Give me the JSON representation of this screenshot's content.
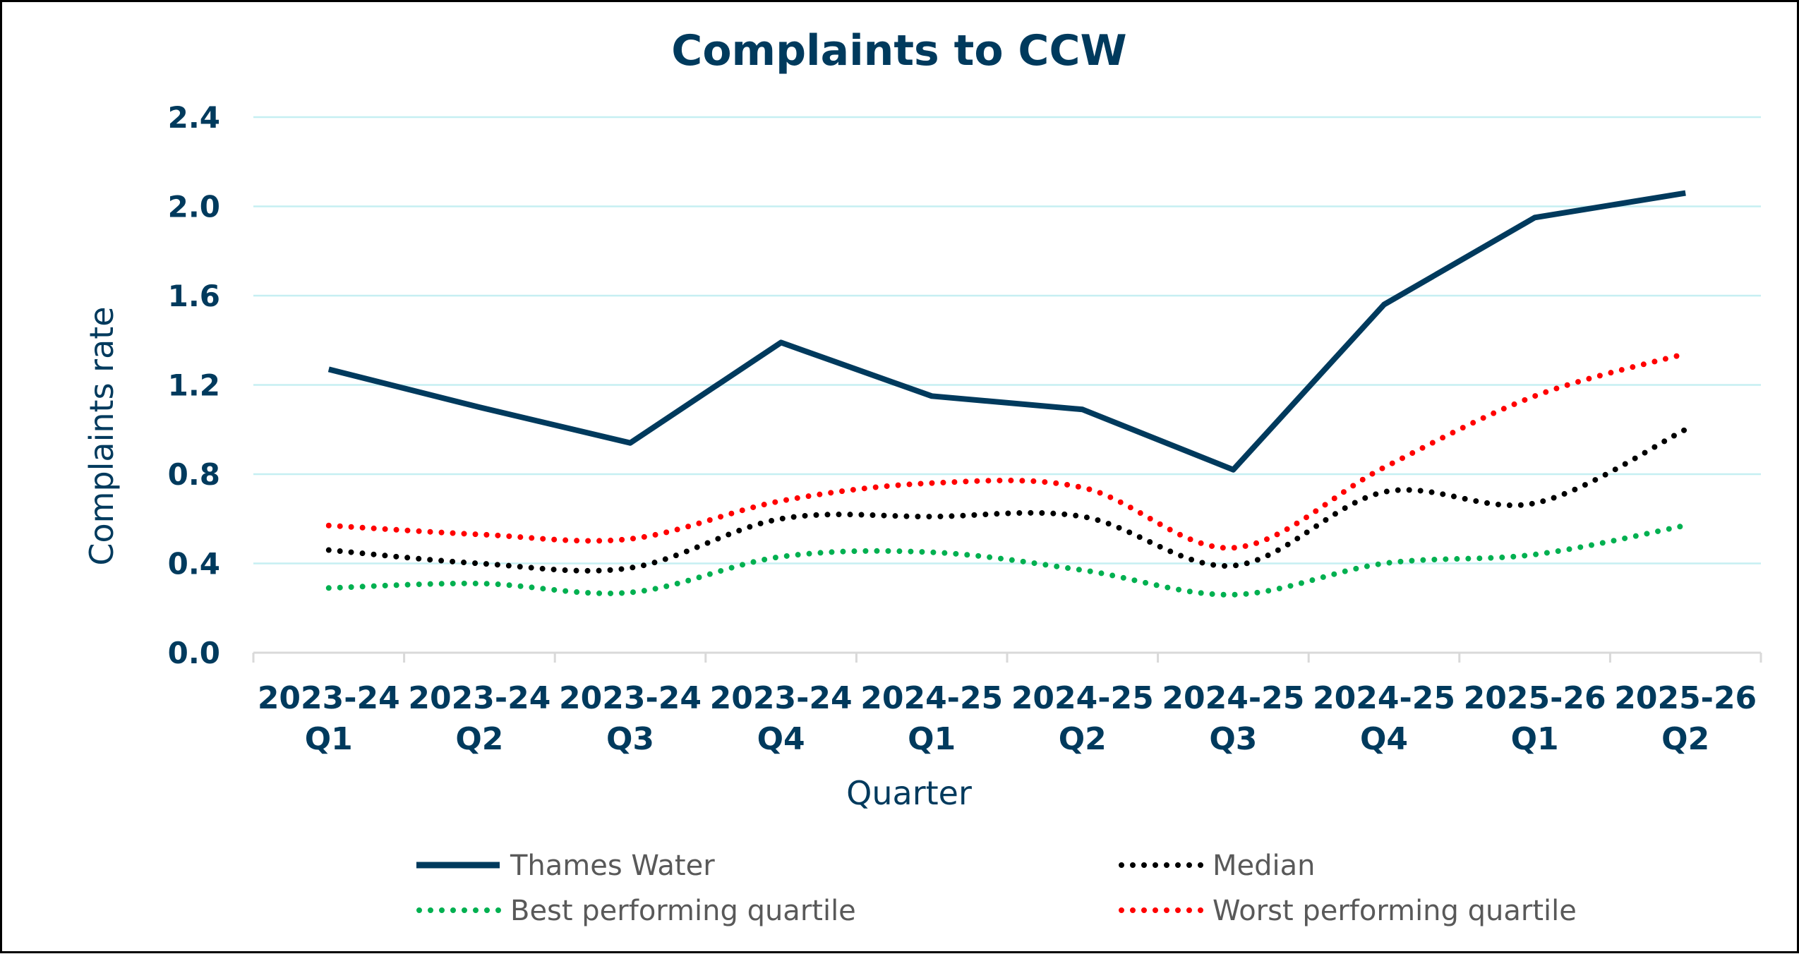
{
  "chart_data": {
    "type": "line",
    "title": "Complaints to CCW",
    "xlabel": "Quarter",
    "ylabel": "Complaints rate",
    "ylim": [
      0,
      2.4
    ],
    "yticks": [
      "0.0",
      "0.4",
      "0.8",
      "1.2",
      "1.6",
      "2.0",
      "2.4"
    ],
    "grid": true,
    "legend_position": "bottom",
    "categories": [
      [
        "2023-24",
        "Q1"
      ],
      [
        "2023-24",
        "Q2"
      ],
      [
        "2023-24",
        "Q3"
      ],
      [
        "2023-24",
        "Q4"
      ],
      [
        "2024-25",
        "Q1"
      ],
      [
        "2024-25",
        "Q2"
      ],
      [
        "2024-25",
        "Q3"
      ],
      [
        "2024-25",
        "Q4"
      ],
      [
        "2025-26",
        "Q1"
      ],
      [
        "2025-26",
        "Q2"
      ]
    ],
    "series": [
      {
        "name": "Thames Water",
        "color": "#003A5D",
        "style": "solid",
        "values": [
          1.27,
          1.1,
          0.94,
          1.39,
          1.15,
          1.09,
          0.82,
          1.56,
          1.95,
          2.06
        ]
      },
      {
        "name": "Median",
        "color": "#000000",
        "style": "dotted",
        "values": [
          0.46,
          0.4,
          0.38,
          0.6,
          0.61,
          0.61,
          0.39,
          0.72,
          0.67,
          1.0
        ]
      },
      {
        "name": "Best performing quartile",
        "color": "#00B050",
        "style": "dotted",
        "values": [
          0.29,
          0.31,
          0.27,
          0.43,
          0.45,
          0.37,
          0.26,
          0.4,
          0.44,
          0.57
        ]
      },
      {
        "name": "Worst performing quartile",
        "color": "#FF0000",
        "style": "dotted",
        "values": [
          0.57,
          0.53,
          0.51,
          0.68,
          0.76,
          0.74,
          0.47,
          0.83,
          1.15,
          1.34
        ]
      }
    ]
  }
}
